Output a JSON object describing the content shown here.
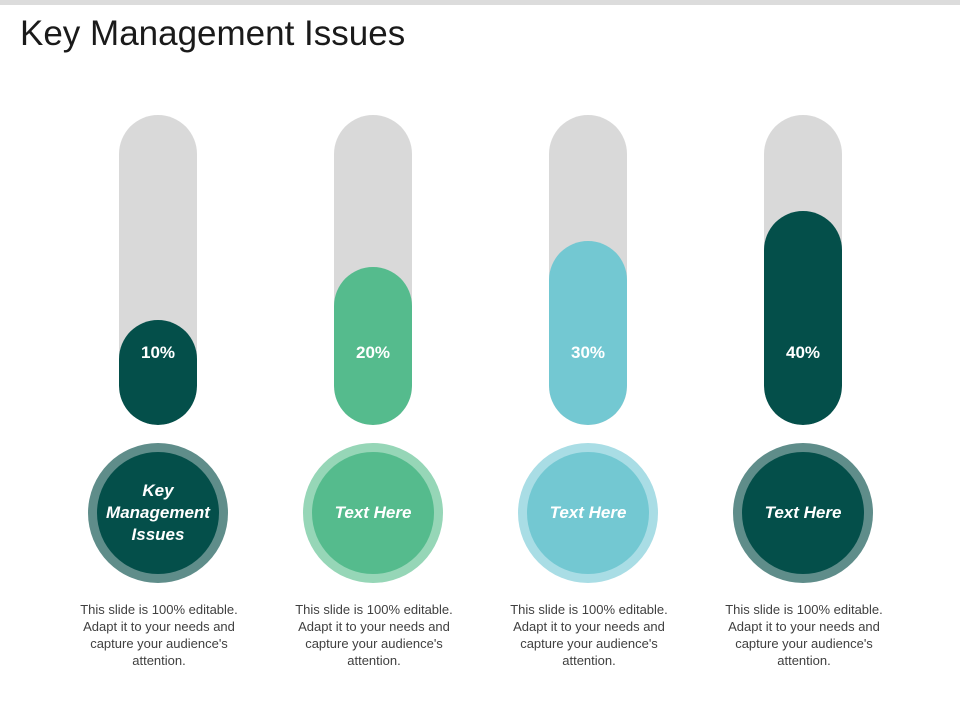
{
  "title": "Key Management Issues",
  "columns": [
    {
      "percent_label": "10%",
      "fill_fraction": 0.34,
      "circle_label": "Key Management Issues",
      "description": "This slide is 100% editable. Adapt it to your needs and capture your audience's attention.",
      "fill_color": "#044f4a",
      "ring_color": "#5f8d8a",
      "inner_color": "#044f4a"
    },
    {
      "percent_label": "20%",
      "fill_fraction": 0.51,
      "circle_label": "Text Here",
      "description": "This slide is 100% editable. Adapt it to your needs and capture your audience's attention.",
      "fill_color": "#55bb8d",
      "ring_color": "#96d6b7",
      "inner_color": "#55bb8d"
    },
    {
      "percent_label": "30%",
      "fill_fraction": 0.595,
      "circle_label": "Text Here",
      "description": "This slide is 100% editable. Adapt it to your needs and capture your audience's attention.",
      "fill_color": "#73c8d2",
      "ring_color": "#a9dde5",
      "inner_color": "#73c8d2"
    },
    {
      "percent_label": "40%",
      "fill_fraction": 0.69,
      "circle_label": "Text Here",
      "description": "This slide is 100% editable. Adapt it to your needs and capture your audience's attention.",
      "fill_color": "#044f4a",
      "ring_color": "#5f8d8a",
      "inner_color": "#044f4a"
    }
  ]
}
